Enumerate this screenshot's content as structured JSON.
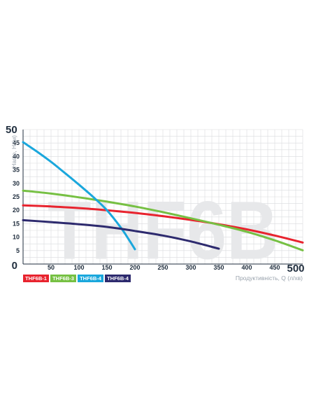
{
  "chart_data": {
    "type": "line",
    "watermark": "THF6B",
    "xlabel": "Продуктивність, Q (л/хв)",
    "ylabel": "Напір, Н (м)",
    "xlim": [
      0,
      500
    ],
    "ylim": [
      0,
      50
    ],
    "x_ticks": [
      {
        "value": 0,
        "label": "0"
      },
      {
        "value": 50,
        "label": "50"
      },
      {
        "value": 100,
        "label": "100"
      },
      {
        "value": 150,
        "label": "150"
      },
      {
        "value": 200,
        "label": "200"
      },
      {
        "value": 250,
        "label": "250"
      },
      {
        "value": 300,
        "label": "300"
      },
      {
        "value": 350,
        "label": "350"
      },
      {
        "value": 400,
        "label": "400"
      },
      {
        "value": 450,
        "label": "450"
      },
      {
        "value": 500,
        "label": "500"
      }
    ],
    "y_ticks": [
      {
        "value": 5,
        "label": "5"
      },
      {
        "value": 10,
        "label": "10"
      },
      {
        "value": 15,
        "label": "15"
      },
      {
        "value": 20,
        "label": "20"
      },
      {
        "value": 25,
        "label": "25"
      },
      {
        "value": 30,
        "label": "30"
      },
      {
        "value": 35,
        "label": "35"
      },
      {
        "value": 40,
        "label": "40"
      },
      {
        "value": 45,
        "label": "45"
      },
      {
        "value": 50,
        "label": "50"
      }
    ],
    "grid": true,
    "legend_position": "bottom-left",
    "series": [
      {
        "name": "THF6B-1",
        "color": "#e8232e",
        "points": [
          [
            0,
            21.8
          ],
          [
            50,
            21.4
          ],
          [
            100,
            20.8
          ],
          [
            150,
            20.0
          ],
          [
            200,
            19.0
          ],
          [
            250,
            17.8
          ],
          [
            300,
            16.4
          ],
          [
            350,
            14.8
          ],
          [
            400,
            12.9
          ],
          [
            450,
            10.6
          ],
          [
            500,
            8.0
          ]
        ]
      },
      {
        "name": "THF6B-3",
        "color": "#76c043",
        "points": [
          [
            0,
            27.3
          ],
          [
            50,
            26.2
          ],
          [
            100,
            24.8
          ],
          [
            150,
            23.2
          ],
          [
            200,
            21.4
          ],
          [
            250,
            19.3
          ],
          [
            300,
            17.0
          ],
          [
            350,
            14.6
          ],
          [
            400,
            12.0
          ],
          [
            450,
            8.8
          ],
          [
            500,
            5.1
          ]
        ]
      },
      {
        "name": "THF6B-4",
        "color": "#1aa7dc",
        "points": [
          [
            0,
            45.3
          ],
          [
            25,
            41.8
          ],
          [
            50,
            38.0
          ],
          [
            75,
            33.8
          ],
          [
            100,
            29.5
          ],
          [
            125,
            25.0
          ],
          [
            150,
            20.0
          ],
          [
            175,
            13.5
          ],
          [
            190,
            8.8
          ],
          [
            200,
            5.5
          ]
        ]
      },
      {
        "name": "THF6B-4",
        "color": "#2d2a6e",
        "points": [
          [
            0,
            16.3
          ],
          [
            50,
            15.6
          ],
          [
            100,
            14.8
          ],
          [
            150,
            13.8
          ],
          [
            200,
            12.3
          ],
          [
            250,
            10.6
          ],
          [
            300,
            8.4
          ],
          [
            350,
            5.7
          ]
        ]
      }
    ]
  }
}
